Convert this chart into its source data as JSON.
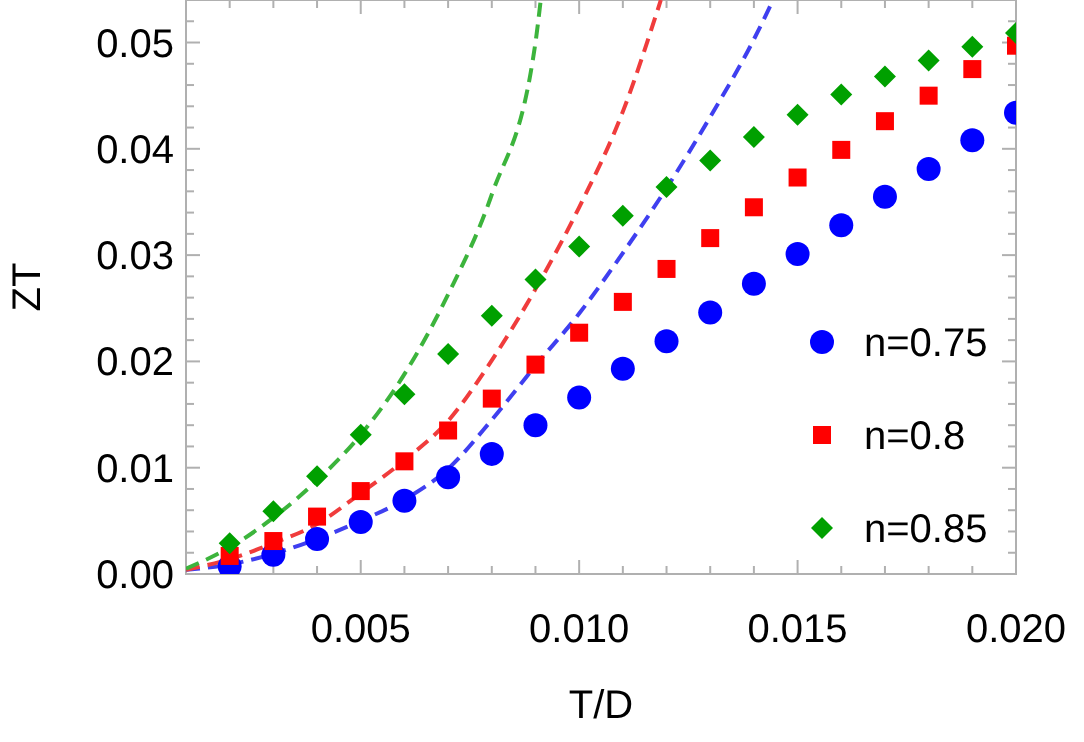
{
  "chart_data": {
    "type": "scatter",
    "xlabel": "T/D",
    "ylabel": "ZT",
    "xlim": [
      0.001,
      0.02
    ],
    "ylim": [
      0,
      0.054
    ],
    "xticks": [
      {
        "value": 0.002,
        "label": null
      },
      {
        "value": 0.003,
        "label": null
      },
      {
        "value": 0.004,
        "label": null
      },
      {
        "value": 0.005,
        "label": "0.005"
      },
      {
        "value": 0.006,
        "label": null
      },
      {
        "value": 0.007,
        "label": null
      },
      {
        "value": 0.008,
        "label": null
      },
      {
        "value": 0.009,
        "label": null
      },
      {
        "value": 0.01,
        "label": "0.010"
      },
      {
        "value": 0.011,
        "label": null
      },
      {
        "value": 0.012,
        "label": null
      },
      {
        "value": 0.013,
        "label": null
      },
      {
        "value": 0.014,
        "label": null
      },
      {
        "value": 0.015,
        "label": "0.015"
      },
      {
        "value": 0.016,
        "label": null
      },
      {
        "value": 0.017,
        "label": null
      },
      {
        "value": 0.018,
        "label": null
      },
      {
        "value": 0.019,
        "label": null
      },
      {
        "value": 0.02,
        "label": "0.020"
      }
    ],
    "yticks": [
      {
        "value": 0,
        "label": "0.00"
      },
      {
        "value": 0.002,
        "label": null
      },
      {
        "value": 0.004,
        "label": null
      },
      {
        "value": 0.006,
        "label": null
      },
      {
        "value": 0.008,
        "label": null
      },
      {
        "value": 0.01,
        "label": "0.01"
      },
      {
        "value": 0.012,
        "label": null
      },
      {
        "value": 0.014,
        "label": null
      },
      {
        "value": 0.016,
        "label": null
      },
      {
        "value": 0.018,
        "label": null
      },
      {
        "value": 0.02,
        "label": "0.02"
      },
      {
        "value": 0.022,
        "label": null
      },
      {
        "value": 0.024,
        "label": null
      },
      {
        "value": 0.026,
        "label": null
      },
      {
        "value": 0.028,
        "label": null
      },
      {
        "value": 0.03,
        "label": "0.03"
      },
      {
        "value": 0.032,
        "label": null
      },
      {
        "value": 0.034,
        "label": null
      },
      {
        "value": 0.036,
        "label": null
      },
      {
        "value": 0.038,
        "label": null
      },
      {
        "value": 0.04,
        "label": "0.04"
      },
      {
        "value": 0.042,
        "label": null
      },
      {
        "value": 0.044,
        "label": null
      },
      {
        "value": 0.046,
        "label": null
      },
      {
        "value": 0.048,
        "label": null
      },
      {
        "value": 0.05,
        "label": "0.05"
      },
      {
        "value": 0.052,
        "label": null
      }
    ],
    "grid": false,
    "legend": "bottom right",
    "x": [
      0.002,
      0.003,
      0.004,
      0.005,
      0.006,
      0.007,
      0.008,
      0.009,
      0.01,
      0.011,
      0.012,
      0.013,
      0.014,
      0.015,
      0.016,
      0.017,
      0.018,
      0.019,
      0.02
    ],
    "series": [
      {
        "type": "line",
        "line_style": "dashed",
        "marker": "none",
        "color": "#3f3ff0",
        "x": [
          0.001,
          0.002,
          0.003,
          0.004,
          0.005,
          0.006,
          0.007,
          0.008,
          0.009,
          0.01,
          0.011,
          0.012,
          0.013,
          0.014,
          0.01444
        ],
        "values": [
          0.0004,
          0.0009,
          0.0019,
          0.0033,
          0.005,
          0.007,
          0.0099,
          0.0145,
          0.0196,
          0.0245,
          0.0302,
          0.0363,
          0.043,
          0.0503,
          0.054
        ]
      },
      {
        "type": "line",
        "line_style": "dashed",
        "marker": "none",
        "color": "#f03c3c",
        "x": [
          0.001,
          0.002,
          0.003,
          0.004,
          0.005,
          0.006,
          0.007,
          0.008,
          0.009,
          0.01,
          0.011,
          0.01187
        ],
        "values": [
          0.0004,
          0.0014,
          0.0029,
          0.0047,
          0.0076,
          0.0107,
          0.0144,
          0.0201,
          0.0268,
          0.0345,
          0.0435,
          0.054
        ]
      },
      {
        "type": "line",
        "line_style": "dashed",
        "marker": "none",
        "color": "#3cb43c",
        "x": [
          0.001,
          0.002,
          0.003,
          0.004,
          0.005,
          0.006,
          0.007,
          0.008,
          0.009,
          0.00912
        ],
        "values": [
          0.0005,
          0.0025,
          0.0053,
          0.0088,
          0.0131,
          0.0188,
          0.0263,
          0.0357,
          0.05,
          0.054
        ]
      },
      {
        "name": "n=0.75",
        "marker": "circle",
        "color": "#0000ff",
        "values": [
          0.0007,
          0.0018,
          0.0033,
          0.0049,
          0.0069,
          0.0091,
          0.0113,
          0.014,
          0.0166,
          0.0193,
          0.0219,
          0.0246,
          0.0273,
          0.0301,
          0.0328,
          0.0355,
          0.0381,
          0.0408,
          0.0434
        ]
      },
      {
        "name": "n=0.8",
        "marker": "square",
        "color": "#ff0000",
        "values": [
          0.0017,
          0.0031,
          0.0054,
          0.0078,
          0.0106,
          0.0135,
          0.0165,
          0.0197,
          0.0227,
          0.0256,
          0.0287,
          0.0316,
          0.0345,
          0.0373,
          0.0399,
          0.0426,
          0.045,
          0.0475,
          0.0497
        ]
      },
      {
        "name": "n=0.85",
        "marker": "diamond",
        "color": "#00a000",
        "values": [
          0.0029,
          0.0059,
          0.0092,
          0.0131,
          0.0169,
          0.0207,
          0.0243,
          0.0277,
          0.0308,
          0.0337,
          0.0364,
          0.0389,
          0.0411,
          0.0432,
          0.0451,
          0.0468,
          0.0483,
          0.0496,
          0.0509
        ]
      }
    ]
  }
}
